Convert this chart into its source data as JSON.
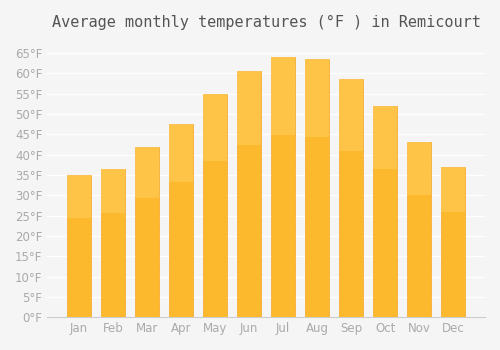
{
  "title": "Average monthly temperatures (°F ) in Remicourt",
  "months": [
    "Jan",
    "Feb",
    "Mar",
    "Apr",
    "May",
    "Jun",
    "Jul",
    "Aug",
    "Sep",
    "Oct",
    "Nov",
    "Dec"
  ],
  "values": [
    35,
    36.5,
    42,
    47.5,
    55,
    60.5,
    64,
    63.5,
    58.5,
    52,
    43,
    37
  ],
  "bar_color": "#FDB92E",
  "bar_edge_color": "#F5A623",
  "background_color": "#f5f5f5",
  "grid_color": "#ffffff",
  "yticks": [
    0,
    5,
    10,
    15,
    20,
    25,
    30,
    35,
    40,
    45,
    50,
    55,
    60,
    65
  ],
  "ylim": [
    0,
    68
  ],
  "title_fontsize": 11,
  "tick_fontsize": 8.5,
  "tick_color": "#aaaaaa",
  "xlabel_color": "#aaaaaa"
}
